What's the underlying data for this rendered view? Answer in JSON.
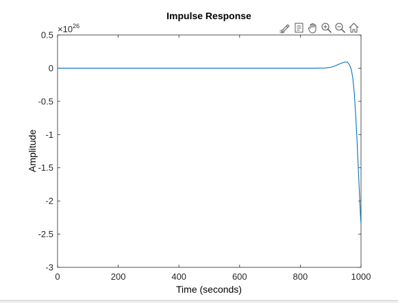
{
  "toolbar": {
    "icons": [
      "brush-edit-icon",
      "data-tips-icon",
      "pan-hand-icon",
      "zoom-in-icon",
      "zoom-out-icon",
      "home-restore-icon"
    ]
  },
  "colors": {
    "line": "#0072BD",
    "axis": "#262626",
    "title": "#000000"
  },
  "chart_data": {
    "type": "line",
    "title": "Impulse Response",
    "xlabel": "Time (seconds)",
    "ylabel": "Amplitude",
    "exponent_label": "×10",
    "exponent_power": "26",
    "xlim": [
      0,
      1000
    ],
    "ylim": [
      -3,
      0.5
    ],
    "x_ticks": [
      0,
      200,
      400,
      600,
      800,
      1000
    ],
    "x_tick_labels": [
      "0",
      "200",
      "400",
      "600",
      "800",
      "1000"
    ],
    "y_ticks": [
      0.5,
      0,
      -0.5,
      -1,
      -1.5,
      -2,
      -2.5,
      -3
    ],
    "y_tick_labels": [
      "0.5",
      "0",
      "-0.5",
      "-1",
      "-1.5",
      "-2",
      "-2.5",
      "-3"
    ],
    "grid": false,
    "series": [
      {
        "x": [
          0,
          100,
          200,
          300,
          400,
          500,
          600,
          700,
          800,
          850,
          880,
          900,
          915,
          930,
          945,
          955,
          962,
          968,
          973,
          978,
          983,
          987,
          991,
          995,
          998,
          1000
        ],
        "y": [
          0,
          0,
          0,
          0,
          0,
          0,
          0,
          0,
          0,
          0.0,
          0.002,
          0.012,
          0.035,
          0.065,
          0.09,
          0.09,
          0.05,
          -0.02,
          -0.15,
          -0.38,
          -0.75,
          -1.1,
          -1.5,
          -1.9,
          -2.2,
          -2.35
        ]
      }
    ]
  }
}
